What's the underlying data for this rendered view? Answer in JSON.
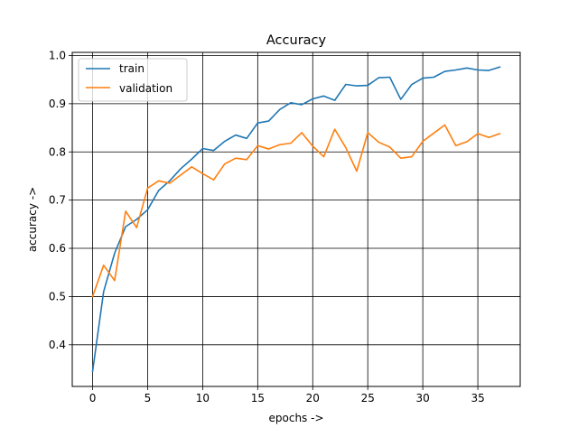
{
  "chart_data": {
    "type": "line",
    "title": "Accuracy",
    "xlabel": "epochs ->",
    "ylabel": "accuracy ->",
    "xlim": [
      -1.85,
      38.85
    ],
    "ylim": [
      0.3135,
      1.0065
    ],
    "xticks": [
      0,
      5,
      10,
      15,
      20,
      25,
      30,
      35
    ],
    "yticks": [
      0.4,
      0.5,
      0.6,
      0.7,
      0.8,
      0.9,
      1.0
    ],
    "ytick_labels": [
      "0.4",
      "0.5",
      "0.6",
      "0.7",
      "0.8",
      "0.9",
      "1.0"
    ],
    "grid": true,
    "legend_position": "top-left",
    "x": [
      0,
      1,
      2,
      3,
      4,
      5,
      6,
      7,
      8,
      9,
      10,
      11,
      12,
      13,
      14,
      15,
      16,
      17,
      18,
      19,
      20,
      21,
      22,
      23,
      24,
      25,
      26,
      27,
      28,
      29,
      30,
      31,
      32,
      33,
      34,
      35,
      36,
      37
    ],
    "series": [
      {
        "name": "train",
        "color": "#1f77b4",
        "values": [
          0.345,
          0.51,
          0.59,
          0.645,
          0.66,
          0.68,
          0.72,
          0.74,
          0.765,
          0.785,
          0.807,
          0.803,
          0.822,
          0.835,
          0.828,
          0.86,
          0.864,
          0.888,
          0.902,
          0.898,
          0.91,
          0.916,
          0.907,
          0.94,
          0.937,
          0.938,
          0.954,
          0.955,
          0.909,
          0.94,
          0.953,
          0.955,
          0.967,
          0.97,
          0.974,
          0.97,
          0.969,
          0.976
        ]
      },
      {
        "name": "validation",
        "color": "#ff7f0e",
        "values": [
          0.5,
          0.565,
          0.533,
          0.677,
          0.643,
          0.725,
          0.74,
          0.735,
          0.752,
          0.769,
          0.755,
          0.742,
          0.775,
          0.787,
          0.784,
          0.813,
          0.806,
          0.815,
          0.818,
          0.84,
          0.812,
          0.79,
          0.847,
          0.809,
          0.76,
          0.84,
          0.82,
          0.81,
          0.787,
          0.79,
          0.822,
          0.839,
          0.856,
          0.813,
          0.821,
          0.838,
          0.83,
          0.838
        ]
      }
    ]
  }
}
